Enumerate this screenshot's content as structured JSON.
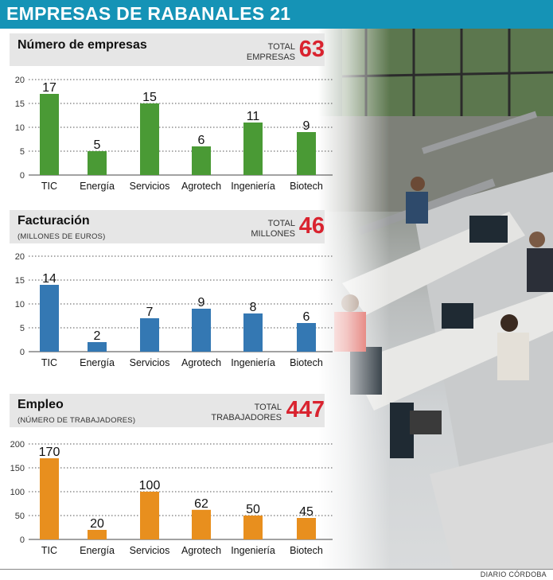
{
  "header": {
    "title": "EMPRESAS DE RABANALES 21"
  },
  "sections": [
    {
      "title": "Número de empresas",
      "subtitle": "",
      "total_label_1": "TOTAL",
      "total_label_2": "EMPRESAS",
      "total_value": "63"
    },
    {
      "title": "Facturación",
      "subtitle": "(MILLONES DE EUROS)",
      "total_label_1": "TOTAL",
      "total_label_2": "MILLONES",
      "total_value": "46"
    },
    {
      "title": "Empleo",
      "subtitle": "(NÚMERO DE TRABAJADORES)",
      "total_label_1": "TOTAL",
      "total_label_2": "TRABAJADORES",
      "total_value": "447"
    }
  ],
  "chart_data": [
    {
      "type": "bar",
      "title": "Número de empresas",
      "categories": [
        "TIC",
        "Energía",
        "Servicios",
        "Agrotech",
        "Ingeniería",
        "Biotech"
      ],
      "values": [
        17,
        5,
        15,
        6,
        11,
        9
      ],
      "ylim": [
        0,
        20
      ],
      "yticks": [
        0,
        5,
        10,
        15,
        20
      ],
      "color": "#4a9a35",
      "grid": true
    },
    {
      "type": "bar",
      "title": "Facturación",
      "categories": [
        "TIC",
        "Energía",
        "Servicios",
        "Agrotech",
        "Ingeniería",
        "Biotech"
      ],
      "values": [
        14,
        2,
        7,
        9,
        8,
        6
      ],
      "ylim": [
        0,
        20
      ],
      "yticks": [
        0,
        5,
        10,
        15,
        20
      ],
      "color": "#3478b3",
      "grid": true
    },
    {
      "type": "bar",
      "title": "Empleo",
      "categories": [
        "TIC",
        "Energía",
        "Servicios",
        "Agrotech",
        "Ingeniería",
        "Biotech"
      ],
      "values": [
        170,
        20,
        100,
        62,
        50,
        45
      ],
      "ylim": [
        0,
        200
      ],
      "yticks": [
        0,
        50,
        100,
        150,
        200
      ],
      "color": "#e88f1e",
      "grid": true
    }
  ],
  "photo": {
    "description_icon": "office-photo"
  },
  "footer": {
    "source": "DIARIO CÓRDOBA"
  }
}
